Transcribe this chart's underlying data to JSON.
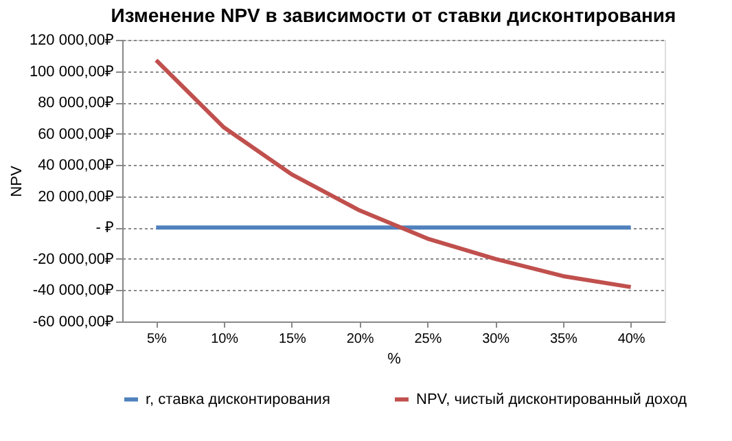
{
  "chart_data": {
    "type": "line",
    "title": "Изменение NPV в зависимости от ставки дисконтирования",
    "xlabel": "%",
    "ylabel": "NPV",
    "categories": [
      "5%",
      "10%",
      "15%",
      "20%",
      "25%",
      "30%",
      "35%",
      "40%"
    ],
    "series": [
      {
        "name": "r, ставка дисконтирования",
        "color": "#4f81bd",
        "values": [
          0,
          0,
          0,
          0,
          0,
          0,
          0,
          0
        ]
      },
      {
        "name": "NPV, чистый дисконтированный доход",
        "color": "#c0504d",
        "values": [
          107000,
          64000,
          34000,
          11000,
          -7000,
          -20000,
          -31000,
          -38000
        ]
      }
    ],
    "ylim": [
      -60000,
      120000
    ],
    "yticks": [
      {
        "value": -60000,
        "label": "-60 000,00₽"
      },
      {
        "value": -40000,
        "label": "-40 000,00₽"
      },
      {
        "value": -20000,
        "label": "-20 000,00₽"
      },
      {
        "value": 0,
        "label": "-  ₽"
      },
      {
        "value": 20000,
        "label": "20 000,00₽"
      },
      {
        "value": 40000,
        "label": "40 000,00₽"
      },
      {
        "value": 60000,
        "label": "60 000,00₽"
      },
      {
        "value": 80000,
        "label": "80 000,00₽"
      },
      {
        "value": 100000,
        "label": "100 000,00₽"
      },
      {
        "value": 120000,
        "label": "120 000,00₽"
      }
    ],
    "grid": "y",
    "legend": "bottom",
    "marker": "none",
    "line_style": "solid"
  }
}
